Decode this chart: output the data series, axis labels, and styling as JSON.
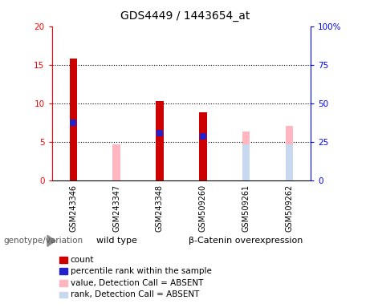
{
  "title": "GDS4449 / 1443654_at",
  "samples": [
    "GSM243346",
    "GSM243347",
    "GSM243348",
    "GSM509260",
    "GSM509261",
    "GSM509262"
  ],
  "count_values": [
    15.8,
    0,
    10.3,
    8.8,
    0,
    0
  ],
  "percentile_values": [
    7.5,
    0,
    6.1,
    5.7,
    0,
    0
  ],
  "absent_value_values": [
    0,
    4.6,
    0,
    0,
    6.3,
    7.0
  ],
  "absent_rank_values": [
    0,
    0,
    0,
    0,
    4.6,
    4.6
  ],
  "groups": [
    {
      "label": "wild type",
      "start": 0,
      "end": 2
    },
    {
      "label": "β-Catenin overexpression",
      "start": 3,
      "end": 5
    }
  ],
  "ylim_left": [
    0,
    20
  ],
  "ylim_right": [
    0,
    100
  ],
  "yticks_left": [
    0,
    5,
    10,
    15,
    20
  ],
  "yticks_right": [
    0,
    25,
    50,
    75,
    100
  ],
  "ytick_labels_right": [
    "0",
    "25",
    "50",
    "75",
    "100%"
  ],
  "count_color": "#cc0000",
  "percentile_color": "#2222cc",
  "absent_value_color": "#ffb6c1",
  "absent_rank_color": "#c8d8f0",
  "background_sample": "#d3d3d3",
  "background_group": "#90ee90",
  "genotype_label": "genotype/variation",
  "legend_items": [
    {
      "color": "#cc0000",
      "label": "count"
    },
    {
      "color": "#2222cc",
      "label": "percentile rank within the sample"
    },
    {
      "color": "#ffb6c1",
      "label": "value, Detection Call = ABSENT"
    },
    {
      "color": "#c8d8f0",
      "label": "rank, Detection Call = ABSENT"
    }
  ],
  "count_bar_width": 0.18,
  "absent_bar_width": 0.18,
  "dot_size": 40,
  "grid_yticks": [
    5,
    10,
    15
  ]
}
